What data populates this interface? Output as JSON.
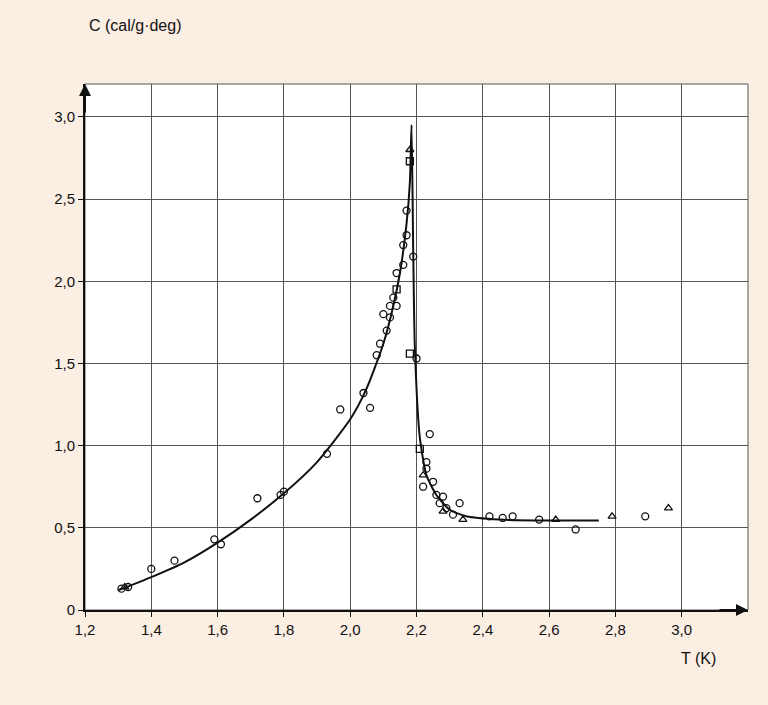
{
  "chart_data": {
    "type": "scatter",
    "xlabel": "T (K)",
    "ylabel": "C (cal/g·deg)",
    "xlim": [
      1.2,
      3.2
    ],
    "ylim": [
      0,
      3.2
    ],
    "xticks": [
      {
        "value": 1.2,
        "label": "1,2"
      },
      {
        "value": 1.4,
        "label": "1,4"
      },
      {
        "value": 1.6,
        "label": "1,6"
      },
      {
        "value": 1.8,
        "label": "1,8"
      },
      {
        "value": 2.0,
        "label": "2,0"
      },
      {
        "value": 2.2,
        "label": "2,2"
      },
      {
        "value": 2.4,
        "label": "2,4"
      },
      {
        "value": 2.6,
        "label": "2,6"
      },
      {
        "value": 2.8,
        "label": "2,8"
      },
      {
        "value": 3.0,
        "label": "3,0"
      }
    ],
    "yticks": [
      0,
      {
        "value": 0.5,
        "label": "0,5"
      },
      {
        "value": 1.0,
        "label": "1,0"
      },
      {
        "value": 1.5,
        "label": "1,5"
      },
      {
        "value": 2.0,
        "label": "2,0"
      },
      {
        "value": 2.5,
        "label": "2,5"
      },
      {
        "value": 3.0,
        "label": "3,0"
      }
    ],
    "grid": true,
    "series": [
      {
        "type": "line",
        "color": "#111111",
        "line_style": "solid",
        "x": [
          1.3,
          1.4,
          1.5,
          1.6,
          1.7,
          1.8,
          1.9,
          2.0,
          2.05,
          2.1,
          2.13,
          2.15,
          2.17,
          2.18,
          2.185,
          2.19,
          2.195,
          2.21,
          2.23,
          2.26,
          2.3,
          2.35,
          2.45,
          2.6,
          2.75
        ],
        "values": [
          0.12,
          0.2,
          0.29,
          0.41,
          0.55,
          0.71,
          0.9,
          1.16,
          1.35,
          1.62,
          1.85,
          2.05,
          2.35,
          2.6,
          2.95,
          2.2,
          1.6,
          1.05,
          0.82,
          0.7,
          0.61,
          0.57,
          0.55,
          0.545,
          0.545
        ]
      },
      {
        "type": "scatter",
        "color": "#111111",
        "marker": "circle-open",
        "x": [
          1.31,
          1.33,
          1.4,
          1.47,
          1.59,
          1.61,
          1.72,
          1.79,
          1.8,
          1.93,
          1.97,
          2.04,
          2.06,
          2.08,
          2.09,
          2.1,
          2.11,
          2.12,
          2.12,
          2.13,
          2.14,
          2.14,
          2.16,
          2.16,
          2.17,
          2.17,
          2.19,
          2.2,
          2.22,
          2.23,
          2.23,
          2.24,
          2.25,
          2.26,
          2.27,
          2.28,
          2.29,
          2.31,
          2.33,
          2.42,
          2.46,
          2.49,
          2.57,
          2.68,
          2.89
        ],
        "values": [
          0.13,
          0.14,
          0.25,
          0.3,
          0.43,
          0.4,
          0.68,
          0.7,
          0.72,
          0.95,
          1.22,
          1.32,
          1.23,
          1.55,
          1.62,
          1.8,
          1.7,
          1.85,
          1.78,
          1.9,
          2.05,
          1.85,
          2.1,
          2.22,
          2.28,
          2.43,
          2.15,
          1.53,
          0.75,
          0.86,
          0.9,
          1.07,
          0.78,
          0.7,
          0.65,
          0.69,
          0.62,
          0.58,
          0.65,
          0.57,
          0.56,
          0.57,
          0.55,
          0.49,
          0.57
        ]
      },
      {
        "type": "scatter",
        "color": "#111111",
        "marker": "square-open",
        "x": [
          2.14,
          2.18,
          2.18,
          2.21
        ],
        "values": [
          1.95,
          2.73,
          1.56,
          0.98
        ]
      },
      {
        "type": "scatter",
        "color": "#111111",
        "marker": "triangle-up-open",
        "x": [
          1.32,
          2.18,
          2.22,
          2.28,
          2.34,
          2.62,
          2.79,
          2.96
        ],
        "values": [
          0.14,
          2.8,
          0.82,
          0.6,
          0.55,
          0.55,
          0.57,
          0.62
        ]
      }
    ]
  }
}
